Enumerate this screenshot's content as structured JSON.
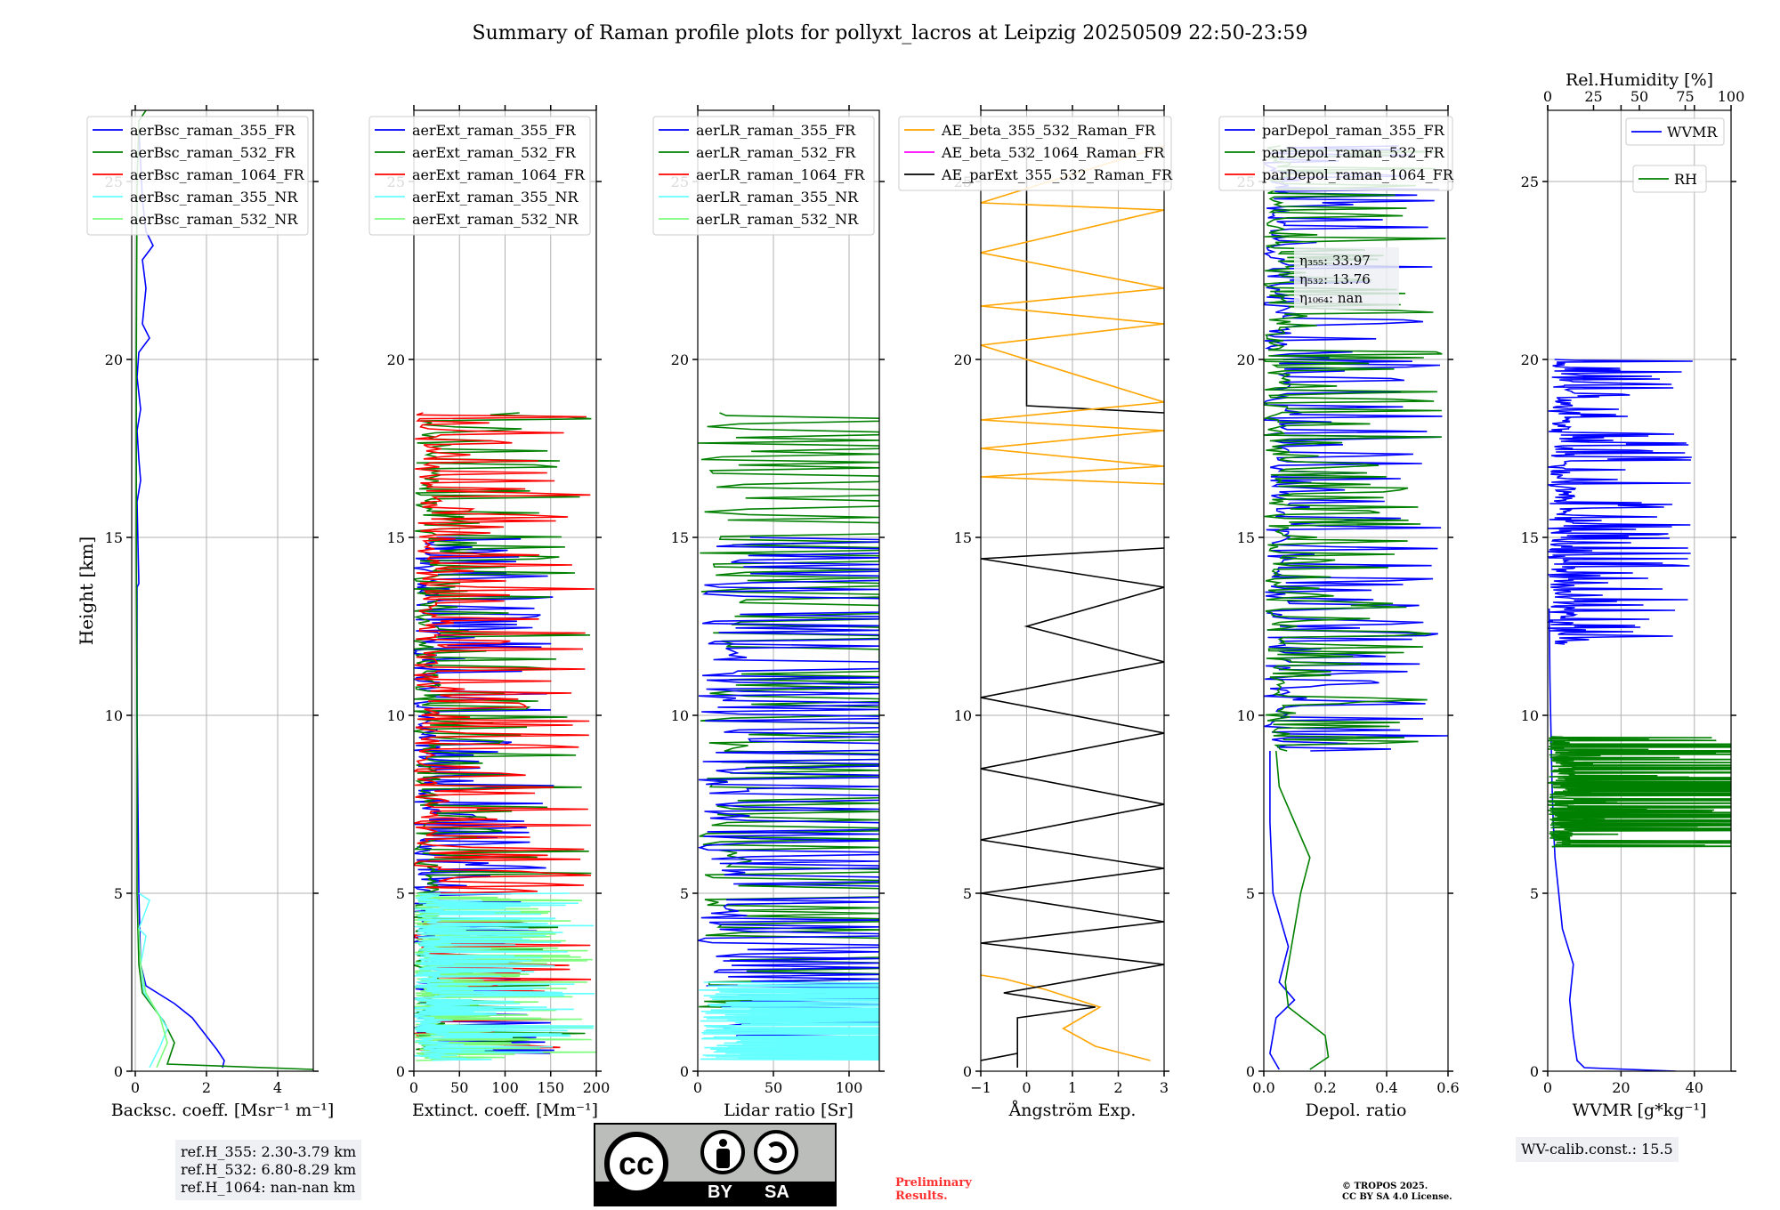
{
  "title": "Summary of Raman profile plots for pollyxt_lacros at Leipzig 20250509 22:50-23:59",
  "colors": {
    "blue": "#0000ff",
    "green": "#008000",
    "red": "#ff0000",
    "cyan": "#66ffff",
    "lightgreen": "#7cfc7c",
    "orange": "#ffa500",
    "magenta": "#ff00ff",
    "black": "#000000",
    "grid": "#b0b0b0"
  },
  "y_axis": {
    "label": "Height [km]",
    "range": [
      0,
      27
    ],
    "ticks": [
      0,
      5,
      10,
      15,
      20,
      25
    ]
  },
  "chart_data": [
    {
      "type": "line",
      "name": "backscatter",
      "xlabel": "Backsc. coeff. [Msr⁻¹ m⁻¹]",
      "xlim": [
        -0.1,
        5
      ],
      "xticks": [
        0,
        2,
        4
      ],
      "legend": [
        "aerBsc_raman_355_FR",
        "aerBsc_raman_532_FR",
        "aerBsc_raman_1064_FR",
        "aerBsc_raman_355_NR",
        "aerBsc_raman_532_NR"
      ],
      "legend_colors": [
        "blue",
        "green",
        "red",
        "cyan",
        "lightgreen"
      ],
      "series": [
        {
          "name": "aerBsc_raman_355_FR",
          "color": "blue",
          "points": [
            [
              2.45,
              0.1
            ],
            [
              2.5,
              0.3
            ],
            [
              2.3,
              0.6
            ],
            [
              1.6,
              1.5
            ],
            [
              1.1,
              1.9
            ],
            [
              0.3,
              2.4
            ],
            [
              0.15,
              3
            ],
            [
              0.1,
              5
            ],
            [
              0.05,
              10
            ],
            [
              0.05,
              13.6
            ],
            [
              0.1,
              13.7
            ],
            [
              0.05,
              16
            ],
            [
              0.15,
              16.6
            ],
            [
              0.1,
              17.2
            ],
            [
              0.05,
              18
            ],
            [
              0.15,
              18.6
            ],
            [
              0.05,
              19.5
            ],
            [
              0.1,
              20.2
            ],
            [
              0.4,
              20.6
            ],
            [
              0.2,
              21
            ],
            [
              0.3,
              22
            ],
            [
              0.2,
              22.8
            ],
            [
              0.5,
              23.2
            ],
            [
              0.3,
              23.6
            ],
            [
              0.2,
              24.5
            ],
            [
              0.15,
              25.5
            ],
            [
              0.1,
              26.5
            ]
          ]
        },
        {
          "name": "aerBsc_raman_532_FR",
          "color": "green",
          "points": [
            [
              5.0,
              0.05
            ],
            [
              0.9,
              0.2
            ],
            [
              1.1,
              0.8
            ],
            [
              0.8,
              1.4
            ],
            [
              0.5,
              1.8
            ],
            [
              0.2,
              2.2
            ],
            [
              0.1,
              3
            ],
            [
              0.05,
              5
            ],
            [
              0.05,
              10
            ],
            [
              0.03,
              15
            ],
            [
              0.03,
              20
            ],
            [
              0.05,
              25
            ],
            [
              0.1,
              26.7
            ],
            [
              0.3,
              27
            ]
          ]
        },
        {
          "name": "aerBsc_raman_355_NR",
          "color": "cyan",
          "points": [
            [
              0.4,
              0.1
            ],
            [
              0.7,
              0.7
            ],
            [
              0.9,
              1.2
            ],
            [
              0.6,
              1.7
            ],
            [
              0.25,
              2.2
            ],
            [
              0.15,
              3
            ],
            [
              0.3,
              3.8
            ],
            [
              0.1,
              4
            ],
            [
              0.4,
              4.8
            ],
            [
              0.1,
              5
            ]
          ]
        },
        {
          "name": "aerBsc_raman_532_NR",
          "color": "lightgreen",
          "points": [
            [
              0.6,
              0.1
            ],
            [
              0.9,
              0.8
            ],
            [
              0.7,
              1.5
            ],
            [
              0.3,
              2.2
            ],
            [
              0.15,
              3
            ],
            [
              0.1,
              4
            ]
          ]
        }
      ]
    },
    {
      "type": "line",
      "name": "extinction",
      "xlabel": "Extinct. coeff. [Mm⁻¹]",
      "xlim": [
        0,
        200
      ],
      "xticks": [
        0,
        50,
        100,
        150,
        200
      ],
      "legend": [
        "aerExt_raman_355_FR",
        "aerExt_raman_532_FR",
        "aerExt_raman_1064_FR",
        "aerExt_raman_355_NR",
        "aerExt_raman_532_NR"
      ],
      "legend_colors": [
        "blue",
        "green",
        "red",
        "cyan",
        "lightgreen"
      ],
      "series": [
        {
          "name": "aerExt_raman_355_FR",
          "color": "blue",
          "style": "spiky",
          "ymin": 0.5,
          "ymax": 15,
          "amp": 160,
          "seed": 3
        },
        {
          "name": "aerExt_raman_532_FR",
          "color": "green",
          "style": "spiky",
          "ymin": 0.5,
          "ymax": 18.5,
          "amp": 200,
          "seed": 7
        },
        {
          "name": "aerExt_raman_1064_FR",
          "color": "red",
          "style": "spiky",
          "ymin": 0.5,
          "ymax": 18.5,
          "amp": 200,
          "seed": 11
        },
        {
          "name": "aerExt_raman_532_NR",
          "color": "lightgreen",
          "style": "spiky",
          "ymin": 0.3,
          "ymax": 5,
          "amp": 200,
          "seed": 17
        },
        {
          "name": "aerExt_raman_355_NR",
          "color": "cyan",
          "style": "spiky",
          "ymin": 0.3,
          "ymax": 5,
          "amp": 200,
          "seed": 19
        }
      ]
    },
    {
      "type": "line",
      "name": "lidar_ratio",
      "xlabel": "Lidar ratio [Sr]",
      "xlim": [
        0,
        120
      ],
      "xticks": [
        0,
        50,
        100
      ],
      "legend": [
        "aerLR_raman_355_FR",
        "aerLR_raman_532_FR",
        "aerLR_raman_1064_FR",
        "aerLR_raman_355_NR",
        "aerLR_raman_532_NR"
      ],
      "legend_colors": [
        "blue",
        "green",
        "red",
        "cyan",
        "lightgreen"
      ],
      "series": [
        {
          "name": "aerLR_raman_532_FR",
          "color": "green",
          "style": "bands",
          "ymin": 1.5,
          "ymax": 18.5,
          "amp": 120,
          "seed": 5
        },
        {
          "name": "aerLR_raman_355_FR",
          "color": "blue",
          "style": "bands",
          "ymin": 1.0,
          "ymax": 15,
          "amp": 120,
          "seed": 9
        },
        {
          "name": "aerLR_raman_355_NR",
          "color": "cyan",
          "style": "bands",
          "ymin": 0.3,
          "ymax": 2.5,
          "amp": 120,
          "seed": 13
        }
      ]
    },
    {
      "type": "line",
      "name": "angstrom",
      "xlabel": "Ångström Exp.",
      "xlim": [
        -1,
        3
      ],
      "xticks": [
        -1,
        0,
        1,
        2,
        3
      ],
      "legend": [
        "AE_beta_355_532_Raman_FR",
        "AE_beta_532_1064_Raman_FR",
        "AE_parExt_355_532_Raman_FR"
      ],
      "legend_colors": [
        "orange",
        "magenta",
        "black"
      ],
      "series": [
        {
          "name": "AE_beta_355_532_Raman_FR",
          "color": "orange",
          "points": [
            [
              2.7,
              0.3
            ],
            [
              1.5,
              0.7
            ],
            [
              0.8,
              1.2
            ],
            [
              1.6,
              1.8
            ],
            [
              0.4,
              2.3
            ],
            [
              -0.5,
              2.6
            ],
            [
              -1,
              2.7
            ]
          ]
        },
        {
          "name": "AE_parExt_355_532_Raman_FR",
          "color": "black",
          "points": [
            [
              -1,
              0.3
            ],
            [
              -0.2,
              0.5
            ],
            [
              -0.2,
              0.1
            ],
            [
              -0.2,
              1.5
            ],
            [
              1.5,
              1.8
            ],
            [
              -0.5,
              2.2
            ],
            [
              3,
              3
            ],
            [
              -1,
              3.6
            ],
            [
              3,
              4.2
            ],
            [
              -1,
              5
            ],
            [
              3,
              5.7
            ],
            [
              -1,
              6.5
            ],
            [
              3,
              7.5
            ],
            [
              -1,
              8.5
            ],
            [
              3,
              9.5
            ],
            [
              -1,
              10.5
            ],
            [
              3,
              11.5
            ],
            [
              0,
              12.5
            ],
            [
              3,
              13.6
            ],
            [
              -1,
              14.4
            ],
            [
              3,
              14.7
            ]
          ]
        },
        {
          "name": "AE_parExt_355_532_Raman_FR",
          "color": "black",
          "points": [
            [
              0,
              26
            ],
            [
              0,
              18.7
            ],
            [
              3,
              18.5
            ]
          ]
        },
        {
          "name": "AE_beta_355_532_Raman_FR",
          "color": "orange",
          "points": [
            [
              3,
              16.5
            ],
            [
              -1,
              16.7
            ],
            [
              3,
              17
            ],
            [
              -1,
              17.5
            ],
            [
              3,
              18
            ],
            [
              -1,
              18.3
            ],
            [
              3,
              18.8
            ],
            [
              -1,
              20.4
            ],
            [
              3,
              21
            ],
            [
              -1,
              21.5
            ],
            [
              3,
              22
            ],
            [
              -1,
              23
            ],
            [
              3,
              24.2
            ],
            [
              -1,
              24.4
            ],
            [
              3,
              26
            ]
          ]
        }
      ]
    },
    {
      "type": "line",
      "name": "depolarization",
      "xlabel": "Depol. ratio",
      "xlim": [
        0,
        0.6
      ],
      "xticks": [
        0,
        0.2,
        0.4,
        0.6
      ],
      "xticklabels": [
        "0.0",
        "0.2",
        "0.4",
        "0.6"
      ],
      "legend": [
        "parDepol_raman_355_FR",
        "parDepol_raman_532_FR",
        "parDepol_raman_1064_FR"
      ],
      "legend_colors": [
        "blue",
        "green",
        "red"
      ],
      "annotation": [
        "η₃₅₅: 33.97",
        "η₅₃₂: 13.76",
        "η₁₀₆₄: nan"
      ],
      "series": [
        {
          "name": "parDepol_raman_355_FR",
          "color": "blue",
          "points": [
            [
              0.05,
              0.05
            ],
            [
              0.02,
              0.5
            ],
            [
              0.04,
              1.5
            ],
            [
              0.1,
              2
            ],
            [
              0.05,
              2.5
            ],
            [
              0.08,
              3.5
            ],
            [
              0.03,
              5
            ],
            [
              0.02,
              7
            ],
            [
              0.02,
              9
            ]
          ]
        },
        {
          "name": "parDepol_raman_532_FR",
          "color": "green",
          "points": [
            [
              0.15,
              0.05
            ],
            [
              0.21,
              0.4
            ],
            [
              0.2,
              1
            ],
            [
              0.08,
              1.8
            ],
            [
              0.07,
              2.5
            ],
            [
              0.1,
              4
            ],
            [
              0.12,
              5
            ],
            [
              0.15,
              6
            ],
            [
              0.1,
              7
            ],
            [
              0.05,
              8
            ],
            [
              0.04,
              9
            ]
          ]
        },
        {
          "name": "parDepol_raman_355_FR",
          "color": "blue",
          "style": "spiky",
          "ymin": 9,
          "ymax": 26,
          "amp": 0.6,
          "seed": 21
        },
        {
          "name": "parDepol_raman_532_FR",
          "color": "green",
          "style": "spiky",
          "ymin": 9,
          "ymax": 26,
          "amp": 0.6,
          "seed": 23
        }
      ]
    },
    {
      "type": "line",
      "name": "wvmr",
      "xlabel": "WVMR [g*kg⁻¹]",
      "xlim": [
        0,
        50
      ],
      "xticks": [
        0,
        20,
        40
      ],
      "top_axis": {
        "label": "Rel.Humidity [%]",
        "ticks": [
          0,
          25,
          50,
          75,
          100
        ],
        "range": [
          0,
          100
        ]
      },
      "legend": [
        "WVMR",
        "RH"
      ],
      "legend_colors": [
        "blue",
        "green"
      ],
      "series": [
        {
          "name": "WVMR",
          "color": "blue",
          "points": [
            [
              35,
              0
            ],
            [
              10,
              0.1
            ],
            [
              8,
              0.3
            ],
            [
              7,
              1
            ],
            [
              6,
              2
            ],
            [
              7,
              3
            ],
            [
              4,
              4
            ],
            [
              3,
              5
            ],
            [
              2,
              6
            ],
            [
              1.5,
              7
            ],
            [
              1.2,
              8
            ],
            [
              1,
              9
            ],
            [
              0.8,
              10
            ],
            [
              0.6,
              11
            ],
            [
              0.5,
              12
            ],
            [
              0.4,
              13
            ]
          ]
        },
        {
          "name": "WVMR",
          "color": "blue",
          "style": "spiky",
          "ymin": 12,
          "ymax": 20,
          "amp": 40,
          "seed": 29
        },
        {
          "name": "RH",
          "color": "green",
          "style": "spiky",
          "ymin": 6.3,
          "ymax": 9.4,
          "amp": 100,
          "seed": 31
        },
        {
          "name": "RH",
          "color": "green",
          "points": [
            [
              100,
              2.6
            ],
            [
              60,
              2.4
            ],
            [
              90,
              2.2
            ],
            [
              100,
              2.1
            ]
          ]
        }
      ]
    }
  ],
  "ref_box": [
    "ref.H_355: 2.30-3.79 km",
    "ref.H_532: 6.80-8.29 km",
    "ref.H_1064: nan-nan km"
  ],
  "wv_calib": "WV-calib.const.: 15.5",
  "preliminary": [
    "Preliminary",
    "Results."
  ],
  "copyright": [
    "© TROPOS 2025.",
    "CC BY SA 4.0 License."
  ],
  "license_badge": {
    "cc": "cc",
    "by": "BY",
    "sa": "SA"
  }
}
